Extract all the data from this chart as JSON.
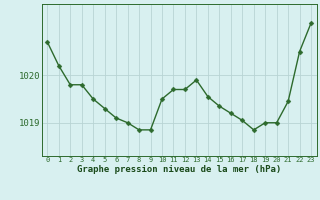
{
  "x": [
    0,
    1,
    2,
    3,
    4,
    5,
    6,
    7,
    8,
    9,
    10,
    11,
    12,
    13,
    14,
    15,
    16,
    17,
    18,
    19,
    20,
    21,
    22,
    23
  ],
  "y": [
    1020.7,
    1020.2,
    1019.8,
    1019.8,
    1019.5,
    1019.3,
    1019.1,
    1019.0,
    1018.85,
    1018.85,
    1019.5,
    1019.7,
    1019.7,
    1019.9,
    1019.55,
    1019.35,
    1019.2,
    1019.05,
    1018.85,
    1019.0,
    1019.0,
    1019.45,
    1020.5,
    1021.1
  ],
  "line_color": "#2d6a2d",
  "marker": "D",
  "marker_size": 2.5,
  "bg_color": "#d8f0f0",
  "grid_color": "#b8d4d4",
  "yticks": [
    1019.0,
    1020.0
  ],
  "ylim": [
    1018.3,
    1021.5
  ],
  "xlim": [
    -0.5,
    23.5
  ],
  "xlabel": "Graphe pression niveau de la mer (hPa)",
  "xlabel_color": "#1a4a1a",
  "axis_color": "#2d6a2d",
  "tick_color": "#2d6a2d",
  "linewidth": 1.0
}
